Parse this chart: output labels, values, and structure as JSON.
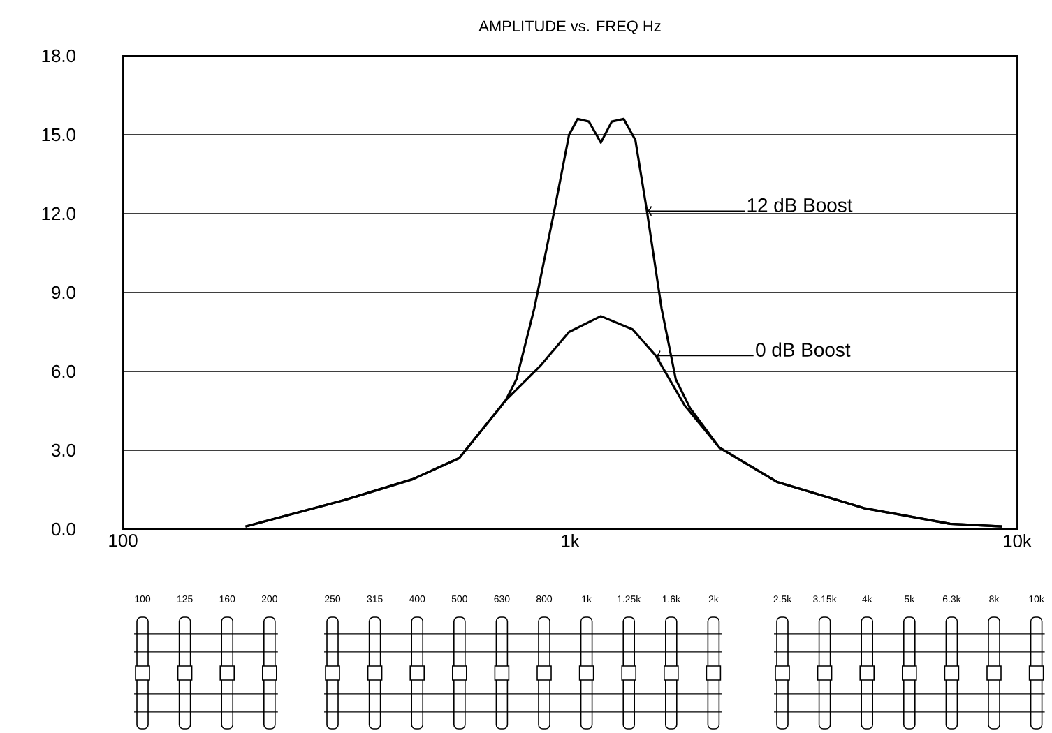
{
  "chart_data": {
    "type": "line",
    "title": "AMPLITUDE vs. FREQ Hz",
    "log": "x",
    "grid": "y",
    "marker": "none",
    "line_style": "solid",
    "xlim": [
      100,
      10000
    ],
    "xticks": [
      {
        "value": 100,
        "label": "100"
      },
      {
        "value": 1000,
        "label": "1k"
      },
      {
        "value": 10000,
        "label": "10k"
      }
    ],
    "ylim": [
      0,
      18
    ],
    "yticks": [
      {
        "value": 0,
        "label": "0.0"
      },
      {
        "value": 3,
        "label": "3.0"
      },
      {
        "value": 6,
        "label": "6.0"
      },
      {
        "value": 9,
        "label": "9.0"
      },
      {
        "value": 12,
        "label": "12.0"
      },
      {
        "value": 15,
        "label": "15.0"
      },
      {
        "value": 18,
        "label": "18.0"
      }
    ],
    "series": [
      {
        "color": "#000000",
        "x": [
          188,
          312,
          445,
          565,
          718,
          759,
          832,
          922,
          995,
          1040,
          1102,
          1172,
          1240,
          1318,
          1400,
          1486,
          1602,
          1724,
          1856,
          2158,
          2900,
          4540,
          7080,
          9250
        ],
        "values": [
          0.1,
          1.1,
          1.9,
          2.7,
          4.9,
          5.7,
          8.4,
          12.1,
          15.0,
          15.6,
          15.5,
          14.7,
          15.5,
          15.6,
          14.8,
          12.1,
          8.4,
          5.7,
          4.6,
          3.1,
          1.8,
          0.8,
          0.2,
          0.1
        ]
      },
      {
        "color": "#000000",
        "x": [
          188,
          312,
          445,
          565,
          718,
          857,
          995,
          1172,
          1380,
          1555,
          1806,
          2158,
          2900,
          4540,
          7080,
          9250
        ],
        "values": [
          0.1,
          1.1,
          1.9,
          2.7,
          4.9,
          6.2,
          7.5,
          8.1,
          7.6,
          6.6,
          4.7,
          3.1,
          1.8,
          0.8,
          0.2,
          0.1
        ]
      }
    ],
    "annotations": [
      "12 dB Boost",
      "0 dB Boost",
      "100",
      "125",
      "160",
      "200",
      "250",
      "315",
      "400",
      "500",
      "630",
      "800",
      "1k",
      "1.25k",
      "1.6k",
      "2k",
      "2.5k",
      "3.15k",
      "4k",
      "5k",
      "6.3k",
      "8k",
      "10k"
    ]
  }
}
